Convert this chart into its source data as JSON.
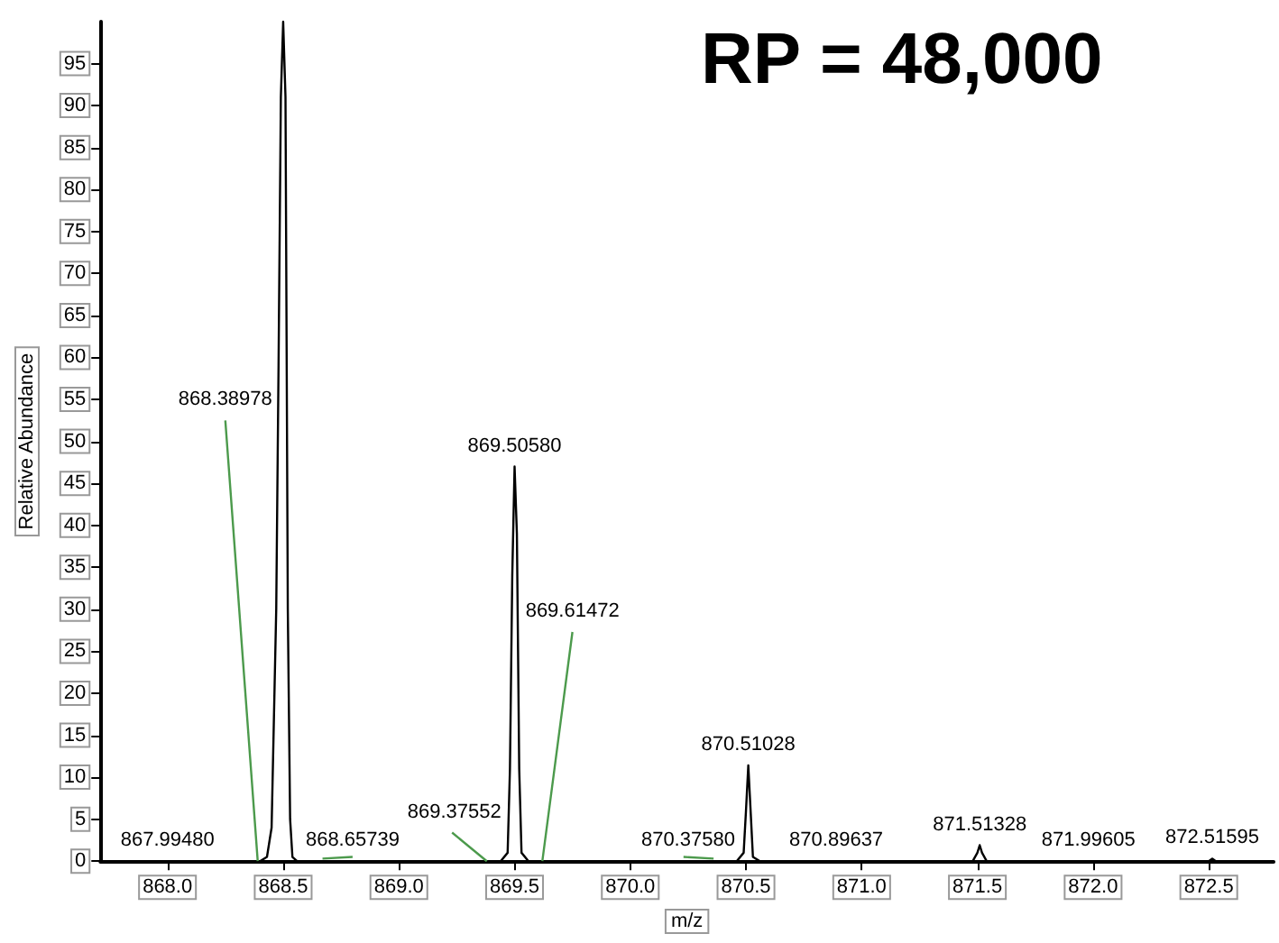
{
  "chart_data": {
    "type": "line",
    "title": "RP = 48,000",
    "xlabel": "m/z",
    "ylabel": "Relative Abundance",
    "marker": "none",
    "xlim": [
      867.71,
      872.78
    ],
    "ylim": [
      0,
      100
    ],
    "xticks": [
      {
        "value": 868,
        "label": "868.0"
      },
      {
        "value": 868.5,
        "label": "868.5"
      },
      {
        "value": 869,
        "label": "869.0"
      },
      {
        "value": 869.5,
        "label": "869.5"
      },
      {
        "value": 870,
        "label": "870.0"
      },
      {
        "value": 870.5,
        "label": "870.5"
      },
      {
        "value": 871,
        "label": "871.0"
      },
      {
        "value": 871.5,
        "label": "871.5"
      },
      {
        "value": 872,
        "label": "872.0"
      },
      {
        "value": 872.5,
        "label": "872.5"
      }
    ],
    "yticks": [
      0,
      5,
      10,
      15,
      20,
      25,
      30,
      35,
      40,
      45,
      50,
      55,
      60,
      65,
      70,
      75,
      80,
      85,
      90,
      95
    ],
    "series": [
      {
        "color": "#000000",
        "x": [
          867.71,
          868.4,
          868.43,
          868.45,
          868.47,
          868.48,
          868.49,
          868.5,
          868.51,
          868.52,
          868.53,
          868.54,
          868.56,
          869.44,
          869.47,
          869.48,
          869.49,
          869.5,
          869.51,
          869.52,
          869.53,
          869.56,
          870.46,
          870.49,
          870.5,
          870.51,
          870.52,
          870.53,
          870.56,
          871.48,
          871.5,
          871.51,
          871.52,
          871.54,
          872.5,
          872.515,
          872.53,
          872.78
        ],
        "values": [
          0,
          0,
          0.5,
          4,
          30,
          59,
          91,
          100,
          91,
          30,
          5,
          0.5,
          0,
          0,
          1,
          11,
          34,
          47,
          39,
          11,
          1,
          0,
          0,
          1,
          6,
          11.4,
          6,
          0.5,
          0,
          0,
          1,
          1.9,
          1,
          0,
          0,
          0.3,
          0,
          0
        ]
      },
      {
        "color": "#4c9a4c",
        "x": [
          868.25,
          868.39,
          868.4,
          868.67,
          868.8,
          868.81,
          869.23,
          869.38,
          869.4,
          869.75,
          869.62,
          869.63,
          870.23,
          870.36
        ],
        "values": [
          52.5,
          0,
          null,
          0.3,
          0.5,
          null,
          3.4,
          0,
          null,
          27.3,
          0,
          null,
          0.5,
          0.3
        ]
      }
    ],
    "annotations": [
      {
        "text": "867.99480",
        "x": 868.0,
        "y": 0
      },
      {
        "text": "868.38978",
        "x": 868.25,
        "y": 52.5
      },
      {
        "text": "868.65739",
        "x": 868.8,
        "y": 0
      },
      {
        "text": "869.37552",
        "x": 869.24,
        "y": 3.4
      },
      {
        "text": "869.50580",
        "x": 869.5,
        "y": 47
      },
      {
        "text": "869.61472",
        "x": 869.75,
        "y": 27.3
      },
      {
        "text": "870.37580",
        "x": 870.25,
        "y": 0
      },
      {
        "text": "870.51028",
        "x": 870.51,
        "y": 11.4
      },
      {
        "text": "870.89637",
        "x": 870.89,
        "y": 0
      },
      {
        "text": "871.51328",
        "x": 871.51,
        "y": 1.9
      },
      {
        "text": "871.99605",
        "x": 871.98,
        "y": 0
      },
      {
        "text": "872.51595",
        "x": 872.515,
        "y": 0.3
      }
    ]
  }
}
